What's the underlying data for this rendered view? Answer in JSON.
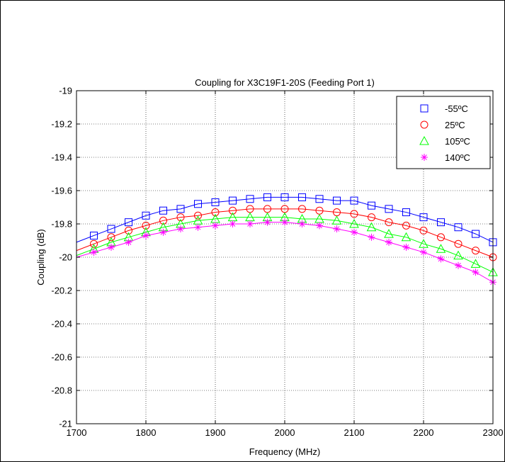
{
  "chart_data": {
    "type": "line",
    "title": "Coupling for X3C19F1-20S (Feeding Port 1)",
    "xlabel": "Frequency (MHz)",
    "ylabel": "Coupling (dB)",
    "xlim": [
      1700,
      2300
    ],
    "ylim": [
      -21,
      -19
    ],
    "xticks": [
      1700,
      1800,
      1900,
      2000,
      2100,
      2200,
      2300
    ],
    "yticks": [
      -19,
      -19.2,
      -19.4,
      -19.6,
      -19.8,
      -20,
      -20.2,
      -20.4,
      -20.6,
      -20.8,
      -21
    ],
    "grid": true,
    "legend_position": "top-right",
    "x": [
      1725,
      1750,
      1775,
      1800,
      1825,
      1850,
      1875,
      1900,
      1925,
      1950,
      1975,
      2000,
      2025,
      2050,
      2075,
      2100,
      2125,
      2150,
      2175,
      2200,
      2225,
      2250,
      2275,
      2300
    ],
    "series": [
      {
        "name": "-55ºC",
        "color": "#0000ff",
        "marker": "square",
        "values": [
          -19.87,
          -19.83,
          -19.79,
          -19.75,
          -19.72,
          -19.71,
          -19.68,
          -19.67,
          -19.66,
          -19.65,
          -19.64,
          -19.64,
          -19.64,
          -19.65,
          -19.66,
          -19.66,
          -19.69,
          -19.71,
          -19.73,
          -19.76,
          -19.79,
          -19.82,
          -19.86,
          -19.91
        ]
      },
      {
        "name": "25ºC",
        "color": "#ff0000",
        "marker": "circle",
        "values": [
          -19.92,
          -19.88,
          -19.84,
          -19.81,
          -19.78,
          -19.76,
          -19.75,
          -19.73,
          -19.72,
          -19.71,
          -19.71,
          -19.71,
          -19.71,
          -19.72,
          -19.73,
          -19.74,
          -19.76,
          -19.79,
          -19.81,
          -19.84,
          -19.88,
          -19.92,
          -19.96,
          -20.0
        ]
      },
      {
        "name": "105ºC",
        "color": "#00ff00",
        "marker": "triangle",
        "values": [
          -19.95,
          -19.91,
          -19.88,
          -19.85,
          -19.82,
          -19.8,
          -19.78,
          -19.77,
          -19.76,
          -19.76,
          -19.76,
          -19.76,
          -19.77,
          -19.77,
          -19.78,
          -19.8,
          -19.82,
          -19.86,
          -19.88,
          -19.92,
          -19.95,
          -19.99,
          -20.04,
          -20.09
        ]
      },
      {
        "name": "140ºC",
        "color": "#ff00ff",
        "marker": "star",
        "values": [
          -19.97,
          -19.94,
          -19.91,
          -19.87,
          -19.85,
          -19.83,
          -19.82,
          -19.81,
          -19.8,
          -19.8,
          -19.79,
          -19.79,
          -19.8,
          -19.81,
          -19.83,
          -19.85,
          -19.88,
          -19.91,
          -19.94,
          -19.97,
          -20.01,
          -20.05,
          -20.09,
          -20.15
        ]
      }
    ]
  }
}
